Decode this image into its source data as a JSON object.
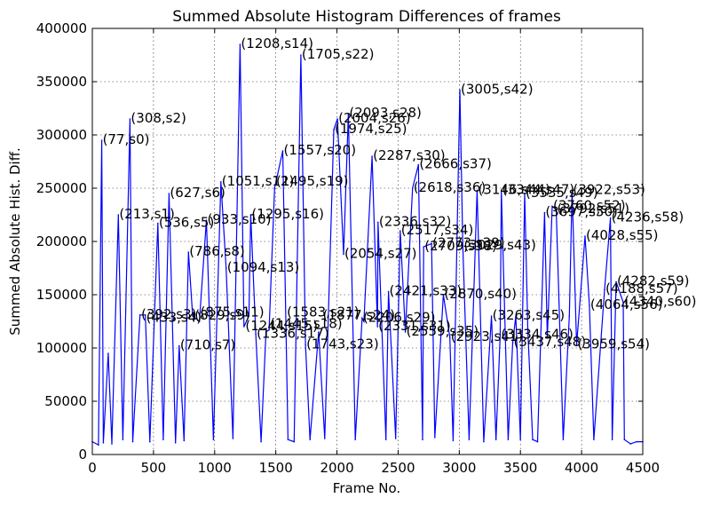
{
  "chart_data": {
    "type": "line",
    "title": "Summed Absolute Histogram Differences of frames",
    "xlabel": "Frame No.",
    "ylabel": "Summed Absolute Hist. Diff.",
    "xlim": [
      0,
      4500
    ],
    "ylim": [
      0,
      400000
    ],
    "x_ticks": [
      0,
      500,
      1000,
      1500,
      2000,
      2500,
      3000,
      3500,
      4000,
      4500
    ],
    "y_ticks": [
      0,
      50000,
      100000,
      150000,
      200000,
      250000,
      300000,
      350000,
      400000
    ],
    "grid": true,
    "line_color": "#0000ff",
    "series": [
      {
        "x": [
          0,
          50,
          77,
          90,
          130,
          160,
          213,
          250,
          308,
          330,
          390,
          433,
          470,
          536,
          580,
          627,
          680,
          710,
          750,
          786,
          820,
          875,
          933,
          990,
          1051,
          1094,
          1150,
          1208,
          1240,
          1280,
          1295,
          1336,
          1380,
          1420,
          1445,
          1490,
          1557,
          1583,
          1600,
          1650,
          1705,
          1743,
          1780,
          1850,
          1900,
          1974,
          2004,
          2054,
          2093,
          2150,
          2206,
          2220,
          2287,
          2331,
          2336,
          2400,
          2421,
          2480,
          2517,
          2559,
          2618,
          2666,
          2700,
          2709,
          2773,
          2800,
          2870,
          2923,
          2950,
          3005,
          3029,
          3080,
          3146,
          3200,
          3263,
          3300,
          3334,
          3344,
          3400,
          3437,
          3462,
          3500,
          3535,
          3560,
          3600,
          3640,
          3697,
          3720,
          3760,
          3792,
          3850,
          3900,
          3922,
          3959,
          4028,
          4064,
          4100,
          4188,
          4236,
          4250,
          4282,
          4340,
          4350,
          4400,
          4450,
          4500
        ],
        "y": [
          12000,
          9000,
          295000,
          11000,
          95000,
          10000,
          225000,
          14000,
          315000,
          12000,
          131000,
          131000,
          12000,
          217000,
          14000,
          245000,
          11000,
          102000,
          13000,
          190000,
          130000,
          125000,
          220000,
          14000,
          256000,
          175000,
          15000,
          385000,
          120000,
          130000,
          225000,
          113000,
          12000,
          115000,
          117000,
          250000,
          285000,
          120000,
          14000,
          12000,
          375000,
          103000,
          14000,
          115000,
          15000,
          305000,
          315000,
          188000,
          320000,
          14000,
          128000,
          125000,
          280000,
          120000,
          218000,
          14000,
          153000,
          15000,
          210000,
          115000,
          250000,
          272000,
          14000,
          195000,
          198000,
          16000,
          150000,
          110000,
          13000,
          342000,
          196000,
          14000,
          248000,
          12000,
          130000,
          14000,
          112000,
          248000,
          14000,
          105000,
          130000,
          14000,
          245000,
          118000,
          14000,
          12000,
          227000,
          110000,
          233000,
          230000,
          14000,
          130000,
          248000,
          103000,
          205000,
          140000,
          14000,
          155000,
          222000,
          14000,
          162000,
          143000,
          14000,
          10000,
          12000,
          12000
        ]
      }
    ],
    "annotations": [
      {
        "text": "(77,s0)",
        "x": 77,
        "y": 295000
      },
      {
        "text": "(308,s2)",
        "x": 308,
        "y": 315000
      },
      {
        "text": "(213,s1)",
        "x": 213,
        "y": 225000
      },
      {
        "text": "(536,s5)",
        "x": 536,
        "y": 217000
      },
      {
        "text": "(627,s6)",
        "x": 627,
        "y": 245000
      },
      {
        "text": "(392,s3)",
        "x": 392,
        "y": 131000
      },
      {
        "text": "(433,s4)",
        "x": 433,
        "y": 128000
      },
      {
        "text": "(710,s7)",
        "x": 710,
        "y": 102000
      },
      {
        "text": "(786,s8)",
        "x": 786,
        "y": 190000
      },
      {
        "text": "(829,s9)",
        "x": 829,
        "y": 130000
      },
      {
        "text": "(875,s11)",
        "x": 875,
        "y": 133000
      },
      {
        "text": "(933,s10)",
        "x": 933,
        "y": 220000
      },
      {
        "text": "(1051,s12)",
        "x": 1051,
        "y": 256000
      },
      {
        "text": "(1094,s13)",
        "x": 1094,
        "y": 175000
      },
      {
        "text": "(1208,s14)",
        "x": 1208,
        "y": 385000
      },
      {
        "text": "(1244,s15)",
        "x": 1244,
        "y": 120000
      },
      {
        "text": "(1295,s16)",
        "x": 1295,
        "y": 225000
      },
      {
        "text": "(1336,s17)",
        "x": 1336,
        "y": 113000
      },
      {
        "text": "(1445,s18)",
        "x": 1445,
        "y": 122000
      },
      {
        "text": "(1495,s19)",
        "x": 1495,
        "y": 256000
      },
      {
        "text": "(1557,s20)",
        "x": 1557,
        "y": 285000
      },
      {
        "text": "(1583,s21)",
        "x": 1583,
        "y": 133000
      },
      {
        "text": "(1705,s22)",
        "x": 1705,
        "y": 375000
      },
      {
        "text": "(1743,s23)",
        "x": 1743,
        "y": 103000
      },
      {
        "text": "(1974,s25)",
        "x": 1974,
        "y": 305000
      },
      {
        "text": "(1877,s24)",
        "x": 1877,
        "y": 130000
      },
      {
        "text": "(2004,s26)",
        "x": 2004,
        "y": 315000
      },
      {
        "text": "(2054,s27)",
        "x": 2054,
        "y": 188000
      },
      {
        "text": "(2093,s28)",
        "x": 2093,
        "y": 320000
      },
      {
        "text": "(2206,s29)",
        "x": 2206,
        "y": 128000
      },
      {
        "text": "(2287,s30)",
        "x": 2287,
        "y": 280000
      },
      {
        "text": "(2331,s31)",
        "x": 2331,
        "y": 120000
      },
      {
        "text": "(2336,s32)",
        "x": 2336,
        "y": 218000
      },
      {
        "text": "(2421,s33)",
        "x": 2421,
        "y": 153000
      },
      {
        "text": "(2517,s34)",
        "x": 2517,
        "y": 210000
      },
      {
        "text": "(2559,s35)",
        "x": 2559,
        "y": 115000
      },
      {
        "text": "(2618,s36)",
        "x": 2618,
        "y": 250000
      },
      {
        "text": "(2666,s37)",
        "x": 2666,
        "y": 272000
      },
      {
        "text": "(2709,s38)",
        "x": 2709,
        "y": 195000
      },
      {
        "text": "(2773,s39)",
        "x": 2773,
        "y": 198000
      },
      {
        "text": "(2870,s40)",
        "x": 2870,
        "y": 150000
      },
      {
        "text": "(2923,s41)",
        "x": 2923,
        "y": 110000
      },
      {
        "text": "(3005,s42)",
        "x": 3005,
        "y": 342000
      },
      {
        "text": "(3029,s43)",
        "x": 3029,
        "y": 196000
      },
      {
        "text": "(3146,s44)",
        "x": 3146,
        "y": 248000
      },
      {
        "text": "(3263,s45)",
        "x": 3263,
        "y": 130000
      },
      {
        "text": "(3334,s46)",
        "x": 3334,
        "y": 112000
      },
      {
        "text": "(3344,s47)",
        "x": 3344,
        "y": 248000
      },
      {
        "text": "(3437,s48)",
        "x": 3437,
        "y": 105000
      },
      {
        "text": "(3535,s49)",
        "x": 3535,
        "y": 245000
      },
      {
        "text": "(3697,s50)",
        "x": 3697,
        "y": 227000
      },
      {
        "text": "(3792,s51)",
        "x": 3792,
        "y": 230000
      },
      {
        "text": "(3760,s52)",
        "x": 3760,
        "y": 233000
      },
      {
        "text": "(3922,s53)",
        "x": 3922,
        "y": 248000
      },
      {
        "text": "(3959,s54)",
        "x": 3959,
        "y": 103000
      },
      {
        "text": "(4028,s55)",
        "x": 4028,
        "y": 205000
      },
      {
        "text": "(4064,s56)",
        "x": 4064,
        "y": 140000
      },
      {
        "text": "(4188,s57)",
        "x": 4188,
        "y": 155000
      },
      {
        "text": "(4236,s58)",
        "x": 4236,
        "y": 222000
      },
      {
        "text": "(4282,s59)",
        "x": 4282,
        "y": 162000
      },
      {
        "text": "(4340,s60)",
        "x": 4340,
        "y": 143000
      }
    ]
  }
}
